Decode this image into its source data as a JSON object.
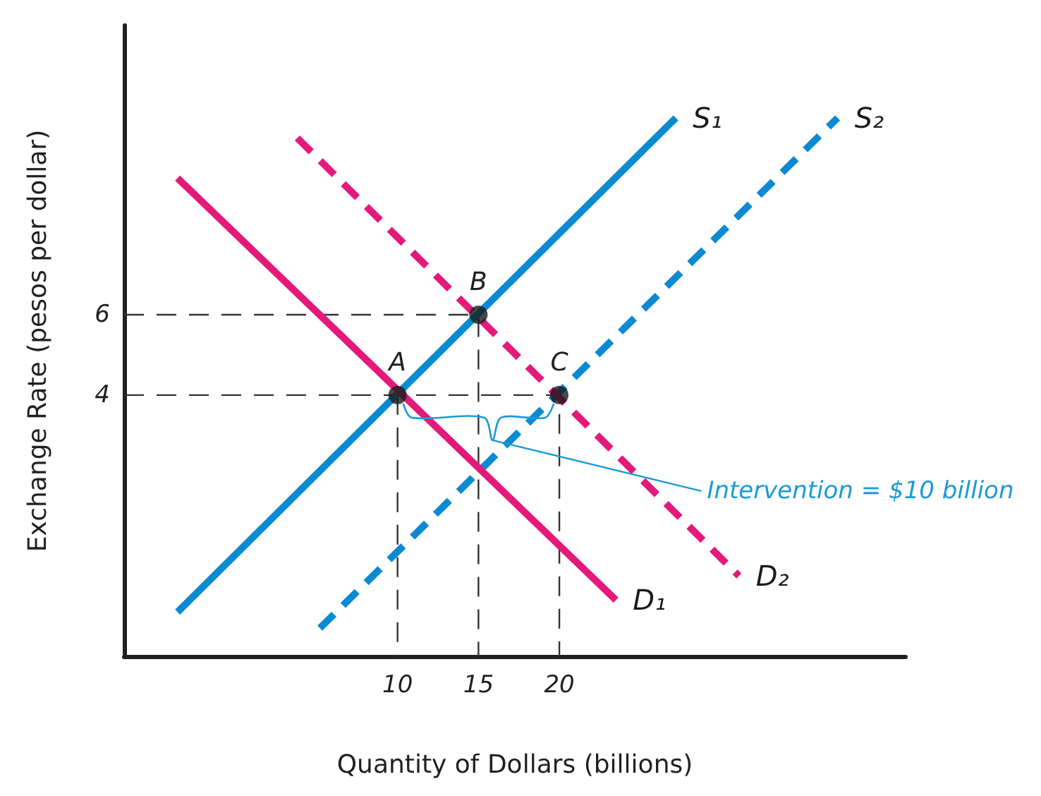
{
  "chart_data": {
    "type": "line",
    "xlabel": "Quantity of Dollars (billions)",
    "ylabel": "Exchange Rate (pesos per dollar)",
    "xlim": [
      -6.9,
      41.4
    ],
    "ylim": [
      -2.5,
      13.2
    ],
    "xticks": [
      10,
      15,
      20
    ],
    "yticks": [
      4,
      6
    ],
    "grid": false,
    "series": [
      {
        "color": "#333333",
        "line_style": "dashed",
        "marker": "none",
        "x": [
          -6.9,
          15,
          15
        ],
        "values": [
          6,
          6,
          -2.5
        ]
      },
      {
        "color": "#333333",
        "line_style": "dashed",
        "marker": "none",
        "x": [
          -6.9,
          20,
          20
        ],
        "values": [
          4,
          4,
          -2.5
        ]
      },
      {
        "color": "#333333",
        "line_style": "dashed",
        "marker": "none",
        "x": [
          10,
          10
        ],
        "values": [
          4,
          -2.5
        ]
      },
      {
        "name": "S₁",
        "color": "#0a8ad2",
        "line_style": "solid",
        "marker": "none",
        "x": [
          -3.6,
          27.2
        ],
        "values": [
          -1.4,
          10.9
        ]
      },
      {
        "name": "S₂",
        "color": "#0a8ad2",
        "line_style": "dashed",
        "marker": "none",
        "x": [
          5.2,
          37.2
        ],
        "values": [
          -1.8,
          10.9
        ]
      },
      {
        "name": "D₁",
        "color": "#e3197b",
        "line_style": "solid",
        "marker": "none",
        "x": [
          -3.6,
          23.5
        ],
        "values": [
          9.4,
          -1.1
        ]
      },
      {
        "name": "D₂",
        "color": "#e3197b",
        "line_style": "dashed",
        "marker": "none",
        "x": [
          3.8,
          31.1
        ],
        "values": [
          10.4,
          -0.5
        ]
      },
      {
        "type": "scatter",
        "color": "#1a1a1a",
        "marker": "circle",
        "x": [
          10,
          15,
          20
        ],
        "values": [
          4,
          6,
          4
        ]
      }
    ],
    "annotations": [
      {
        "text": "A",
        "x": 10,
        "y": 4
      },
      {
        "text": "B",
        "x": 15,
        "y": 6
      },
      {
        "text": "C",
        "x": 20,
        "y": 4
      },
      "Intervention = $10 billion"
    ]
  }
}
